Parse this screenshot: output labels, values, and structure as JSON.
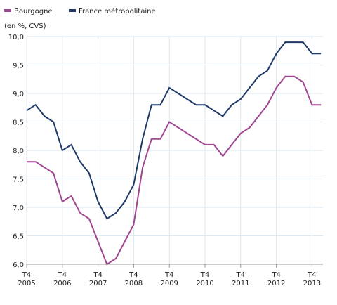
{
  "chart_data": {
    "type": "line",
    "y_label": "(en %, CVS)",
    "categories": [
      "T4\n2005",
      null,
      null,
      null,
      "T4\n2006",
      null,
      null,
      null,
      "T4\n2007",
      null,
      null,
      null,
      "T4\n2008",
      null,
      null,
      null,
      "T4\n2009",
      null,
      null,
      null,
      "T4\n2010",
      null,
      null,
      null,
      "T4\n2011",
      null,
      null,
      null,
      "T4\n2012",
      null,
      null,
      null,
      "T4\n2013",
      null
    ],
    "series": [
      {
        "name": "Bourgogne",
        "color": "#a0458f",
        "values": [
          7.8,
          7.8,
          7.7,
          7.6,
          7.1,
          7.2,
          6.9,
          6.8,
          6.4,
          6.0,
          6.1,
          6.4,
          6.7,
          7.7,
          8.2,
          8.2,
          8.5,
          8.4,
          8.3,
          8.2,
          8.1,
          8.1,
          7.9,
          8.1,
          8.3,
          8.4,
          8.6,
          8.8,
          9.1,
          9.3,
          9.3,
          9.2,
          8.8,
          8.8
        ]
      },
      {
        "name": "France métropolitaine",
        "color": "#1f3a68",
        "values": [
          8.7,
          8.8,
          8.6,
          8.5,
          8.0,
          8.1,
          7.8,
          7.6,
          7.1,
          6.8,
          6.9,
          7.1,
          7.4,
          8.2,
          8.8,
          8.8,
          9.1,
          9.0,
          8.9,
          8.8,
          8.8,
          8.7,
          8.6,
          8.8,
          8.9,
          9.1,
          9.3,
          9.4,
          9.7,
          9.9,
          9.9,
          9.9,
          9.7,
          9.7
        ]
      }
    ],
    "ylim": [
      6.0,
      10.0
    ],
    "yticks": [
      {
        "value": 6.0,
        "label": "6,0"
      },
      {
        "value": 6.5,
        "label": "6,5"
      },
      {
        "value": 7.0,
        "label": "7,0"
      },
      {
        "value": 7.5,
        "label": "7,5"
      },
      {
        "value": 8.0,
        "label": "8,0"
      },
      {
        "value": 8.5,
        "label": "8,5"
      },
      {
        "value": 9.0,
        "label": "9,0"
      },
      {
        "value": 9.5,
        "label": "9,5"
      },
      {
        "value": 10.0,
        "label": "10,0"
      }
    ],
    "grid": true
  }
}
